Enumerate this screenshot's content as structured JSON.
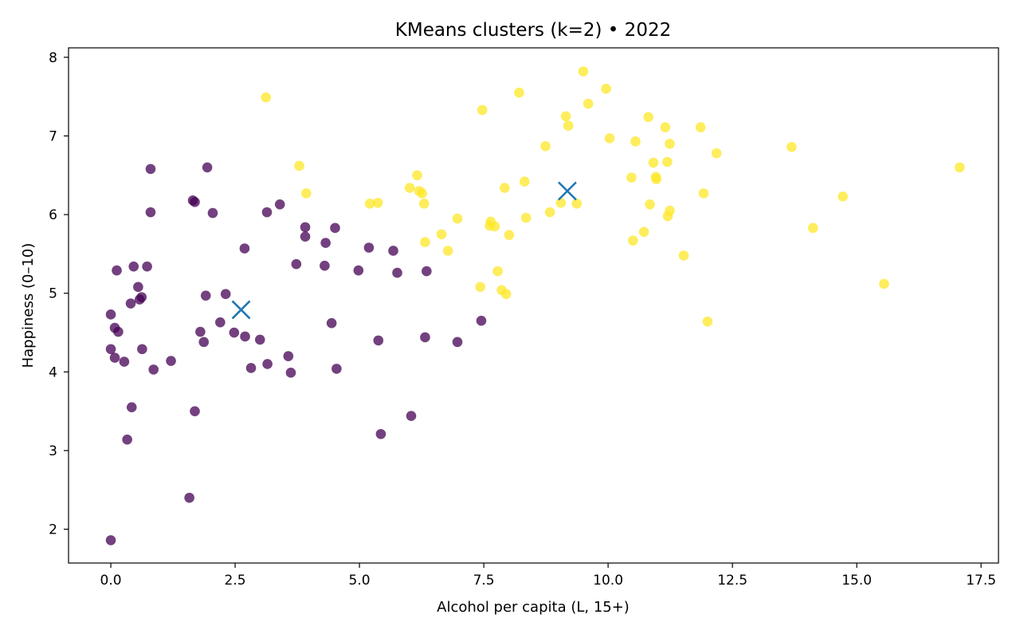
{
  "chart_data": {
    "type": "scatter",
    "title": "KMeans clusters (k=2) • 2022",
    "xlabel": "Alcohol per capita (L, 15+)",
    "ylabel": "Happiness (0–10)",
    "xlim": [
      -0.85,
      17.85
    ],
    "ylim": [
      1.57,
      8.12
    ],
    "xticks": [
      0.0,
      2.5,
      5.0,
      7.5,
      10.0,
      12.5,
      15.0,
      17.5
    ],
    "xtick_labels": [
      "0.0",
      "2.5",
      "5.0",
      "7.5",
      "10.0",
      "12.5",
      "15.0",
      "17.5"
    ],
    "yticks": [
      2,
      3,
      4,
      5,
      6,
      7,
      8
    ],
    "ytick_labels": [
      "2",
      "3",
      "4",
      "5",
      "6",
      "7",
      "8"
    ],
    "grid": false,
    "legend": "none",
    "series": [
      {
        "color": "#440154",
        "points": [
          [
            0.0,
            1.86
          ],
          [
            0.0,
            4.29
          ],
          [
            0.0,
            4.73
          ],
          [
            0.08,
            4.56
          ],
          [
            0.08,
            4.18
          ],
          [
            0.12,
            5.29
          ],
          [
            0.15,
            4.51
          ],
          [
            0.27,
            4.13
          ],
          [
            0.33,
            3.14
          ],
          [
            0.4,
            4.87
          ],
          [
            0.42,
            3.55
          ],
          [
            0.46,
            5.34
          ],
          [
            0.55,
            5.08
          ],
          [
            0.58,
            4.92
          ],
          [
            0.62,
            4.95
          ],
          [
            0.63,
            4.29
          ],
          [
            0.73,
            5.34
          ],
          [
            0.8,
            6.58
          ],
          [
            0.8,
            6.03
          ],
          [
            0.86,
            4.03
          ],
          [
            1.21,
            4.14
          ],
          [
            1.58,
            2.4
          ],
          [
            1.65,
            6.18
          ],
          [
            1.69,
            6.16
          ],
          [
            1.69,
            3.5
          ],
          [
            1.8,
            4.51
          ],
          [
            1.87,
            4.38
          ],
          [
            1.91,
            4.97
          ],
          [
            1.94,
            6.6
          ],
          [
            2.05,
            6.02
          ],
          [
            2.2,
            4.63
          ],
          [
            2.31,
            4.99
          ],
          [
            2.48,
            4.5
          ],
          [
            2.69,
            5.57
          ],
          [
            2.7,
            4.45
          ],
          [
            2.82,
            4.05
          ],
          [
            3.0,
            4.41
          ],
          [
            3.14,
            6.03
          ],
          [
            3.15,
            4.1
          ],
          [
            3.4,
            6.13
          ],
          [
            3.57,
            4.2
          ],
          [
            3.62,
            3.99
          ],
          [
            3.73,
            5.37
          ],
          [
            3.91,
            5.84
          ],
          [
            3.91,
            5.72
          ],
          [
            4.3,
            5.35
          ],
          [
            4.32,
            5.64
          ],
          [
            4.44,
            4.62
          ],
          [
            4.51,
            5.83
          ],
          [
            4.54,
            4.04
          ],
          [
            4.98,
            5.29
          ],
          [
            5.19,
            5.58
          ],
          [
            5.38,
            4.4
          ],
          [
            5.43,
            3.21
          ],
          [
            5.68,
            5.54
          ],
          [
            5.76,
            5.26
          ],
          [
            6.04,
            3.44
          ],
          [
            6.32,
            4.44
          ],
          [
            6.35,
            5.28
          ],
          [
            6.97,
            4.38
          ],
          [
            7.45,
            4.65
          ]
        ]
      },
      {
        "color": "#fde725",
        "points": [
          [
            3.12,
            7.49
          ],
          [
            3.79,
            6.62
          ],
          [
            3.93,
            6.27
          ],
          [
            5.21,
            6.14
          ],
          [
            5.37,
            6.15
          ],
          [
            6.01,
            6.34
          ],
          [
            6.16,
            6.5
          ],
          [
            6.2,
            6.3
          ],
          [
            6.26,
            6.27
          ],
          [
            6.3,
            6.14
          ],
          [
            6.32,
            5.65
          ],
          [
            6.65,
            5.75
          ],
          [
            6.78,
            5.54
          ],
          [
            6.97,
            5.95
          ],
          [
            7.43,
            5.08
          ],
          [
            7.47,
            7.33
          ],
          [
            7.62,
            5.86
          ],
          [
            7.64,
            5.91
          ],
          [
            7.72,
            5.85
          ],
          [
            7.78,
            5.28
          ],
          [
            7.86,
            5.04
          ],
          [
            7.92,
            6.34
          ],
          [
            7.95,
            4.99
          ],
          [
            8.01,
            5.74
          ],
          [
            8.21,
            7.55
          ],
          [
            8.32,
            6.42
          ],
          [
            8.35,
            5.96
          ],
          [
            8.74,
            6.87
          ],
          [
            8.83,
            6.03
          ],
          [
            9.05,
            6.15
          ],
          [
            9.15,
            7.25
          ],
          [
            9.2,
            7.13
          ],
          [
            9.37,
            6.14
          ],
          [
            9.5,
            7.82
          ],
          [
            9.6,
            7.41
          ],
          [
            9.96,
            7.6
          ],
          [
            10.03,
            6.97
          ],
          [
            10.47,
            6.47
          ],
          [
            10.5,
            5.67
          ],
          [
            10.55,
            6.93
          ],
          [
            10.72,
            5.78
          ],
          [
            10.81,
            7.24
          ],
          [
            10.84,
            6.13
          ],
          [
            10.91,
            6.66
          ],
          [
            10.96,
            6.48
          ],
          [
            10.97,
            6.45
          ],
          [
            11.15,
            7.11
          ],
          [
            11.19,
            6.67
          ],
          [
            11.2,
            5.98
          ],
          [
            11.24,
            6.05
          ],
          [
            11.24,
            6.9
          ],
          [
            11.52,
            5.48
          ],
          [
            11.86,
            7.11
          ],
          [
            11.92,
            6.27
          ],
          [
            12.0,
            4.64
          ],
          [
            12.18,
            6.78
          ],
          [
            13.69,
            6.86
          ],
          [
            14.12,
            5.83
          ],
          [
            14.72,
            6.23
          ],
          [
            15.55,
            5.12
          ],
          [
            17.07,
            6.6
          ]
        ]
      }
    ],
    "centroids": {
      "color": "#1f77b4",
      "marker": "x",
      "points": [
        [
          2.62,
          4.79
        ],
        [
          9.18,
          6.3
        ]
      ]
    }
  }
}
